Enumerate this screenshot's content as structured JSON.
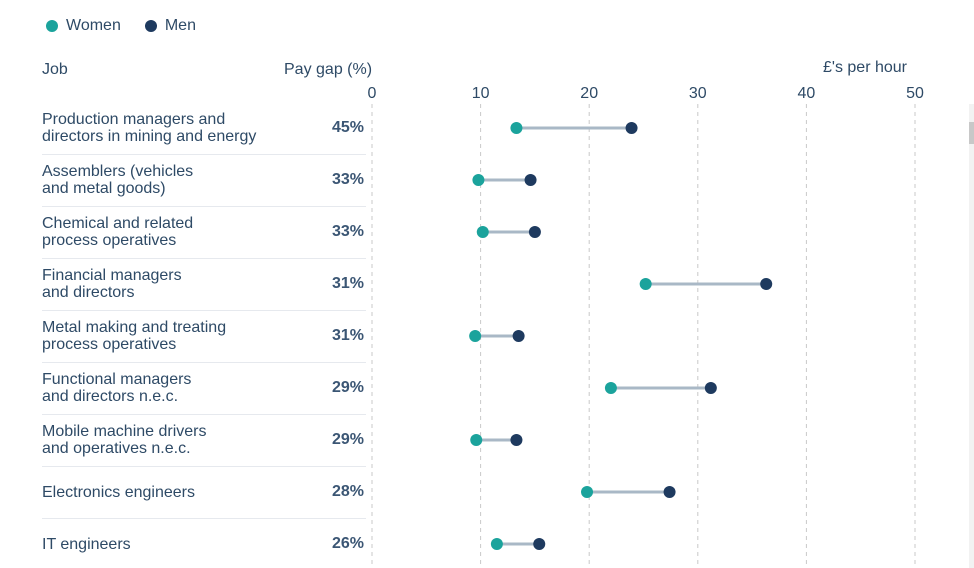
{
  "legend": {
    "women_label": "Women",
    "men_label": "Men"
  },
  "headers": {
    "job": "Job",
    "pay_gap": "Pay gap (%)",
    "hourly": "£'s per hour"
  },
  "colors": {
    "women": "#1ba39c",
    "men": "#1e3a5f",
    "connector": "#a9b8c6",
    "grid": "#c9c9c9"
  },
  "chart_data": {
    "type": "scatter",
    "title": "",
    "xlabel": "£'s per hour",
    "ylabel": "Job",
    "xlim": [
      0,
      50
    ],
    "xticks": [
      "0",
      "10",
      "20",
      "30",
      "40",
      "50"
    ],
    "grid": true,
    "legend_position": "top-left",
    "series": [
      {
        "name": "Women",
        "values": [
          13.3,
          9.8,
          10.2,
          25.2,
          9.5,
          22.0,
          9.6,
          19.8,
          11.5
        ]
      },
      {
        "name": "Men",
        "values": [
          23.9,
          14.6,
          15.0,
          36.3,
          13.5,
          31.2,
          13.3,
          27.4,
          15.4
        ]
      }
    ],
    "rows": [
      {
        "label1": "Production managers and",
        "label2": "directors in mining and energy",
        "gap": "45%",
        "women": 13.3,
        "men": 23.9
      },
      {
        "label1": "Assemblers (vehicles",
        "label2": "and metal goods)",
        "gap": "33%",
        "women": 9.8,
        "men": 14.6
      },
      {
        "label1": "Chemical and related",
        "label2": "process operatives",
        "gap": "33%",
        "women": 10.2,
        "men": 15.0
      },
      {
        "label1": "Financial managers",
        "label2": "and directors",
        "gap": "31%",
        "women": 25.2,
        "men": 36.3
      },
      {
        "label1": "Metal making and treating",
        "label2": "process operatives",
        "gap": "31%",
        "women": 9.5,
        "men": 13.5
      },
      {
        "label1": "Functional managers",
        "label2": "and directors n.e.c.",
        "gap": "29%",
        "women": 22.0,
        "men": 31.2
      },
      {
        "label1": "Mobile machine drivers",
        "label2": "and operatives n.e.c.",
        "gap": "29%",
        "women": 9.6,
        "men": 13.3
      },
      {
        "label1": "Electronics engineers",
        "label2": "",
        "gap": "28%",
        "women": 19.8,
        "men": 27.4
      },
      {
        "label1": "IT engineers",
        "label2": "",
        "gap": "26%",
        "women": 11.5,
        "men": 15.4
      }
    ]
  }
}
